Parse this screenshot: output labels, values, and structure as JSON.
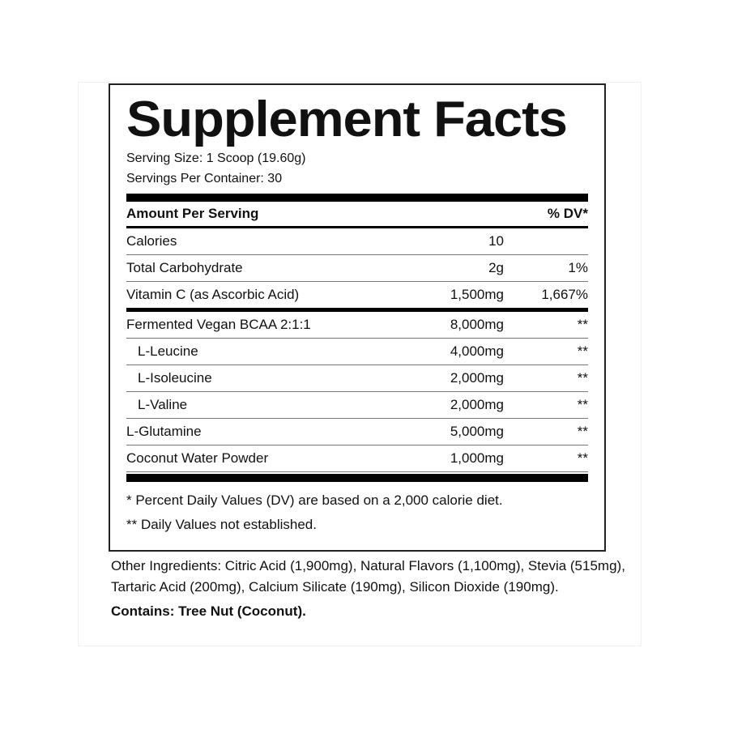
{
  "title": "Supplement Facts",
  "serving_size": "Serving Size: 1 Scoop (19.60g)",
  "servings_per_container": "Servings Per Container: 30",
  "header": {
    "amount": "Amount Per Serving",
    "dv": "% DV*"
  },
  "rows": [
    {
      "name": "Calories",
      "amount": "10",
      "dv": ""
    },
    {
      "name": "Total Carbohydrate",
      "amount": "2g",
      "dv": "1%"
    },
    {
      "name": "Vitamin C (as Ascorbic Acid)",
      "amount": "1,500mg",
      "dv": "1,667%"
    },
    {
      "name": "Fermented Vegan BCAA 2:1:1",
      "amount": "8,000mg",
      "dv": "**"
    },
    {
      "name": "L-Leucine",
      "amount": "4,000mg",
      "dv": "**"
    },
    {
      "name": "L-Isoleucine",
      "amount": "2,000mg",
      "dv": "**"
    },
    {
      "name": "L-Valine",
      "amount": "2,000mg",
      "dv": "**"
    },
    {
      "name": "L-Glutamine",
      "amount": "5,000mg",
      "dv": "**"
    },
    {
      "name": "Coconut Water Powder",
      "amount": "1,000mg",
      "dv": "**"
    }
  ],
  "footnotes": [
    "* Percent Daily Values (DV) are based on a 2,000 calorie diet.",
    "** Daily Values not established."
  ],
  "other_ingredients": "Other Ingredients:  Citric Acid (1,900mg), Natural Flavors (1,100mg), Stevia (515mg), Tartaric Acid (200mg), Calcium Silicate (190mg), Silicon Dioxide (190mg).",
  "contains": "Contains: Tree Nut (Coconut)."
}
